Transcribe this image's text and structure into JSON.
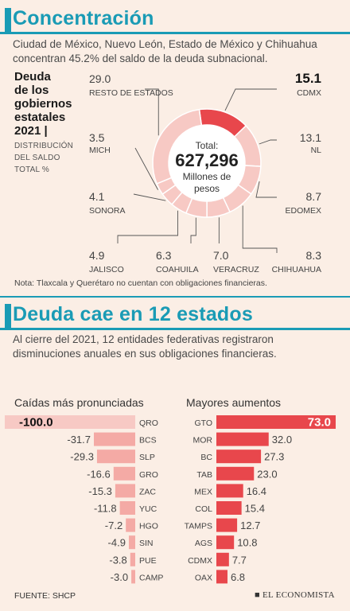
{
  "section1": {
    "title": "Concentración",
    "intro": "Ciudad de México, Nuevo León, Estado de México y Chihuahua concentran 45.2% del saldo de la deuda subnacional.",
    "subtitle_lines": [
      "Deuda",
      "de los",
      "gobiernos",
      "estatales",
      "2021 |"
    ],
    "caption_lines": [
      "DISTRIBUCIÓN",
      "DEL SALDO",
      "TOTAL %"
    ],
    "center": {
      "label": "Total:",
      "value": "627,296",
      "unit_lines": [
        "Millones de",
        "pesos"
      ]
    },
    "note": "Nota: Tlaxcala y Querétaro no cuentan con obligaciones financieras."
  },
  "section2": {
    "title": "Deuda cae en 12 estados",
    "intro": "Al cierre del 2021, 12 entidades federativas registraron disminuciones anuales en sus obligaciones financieras.",
    "left_header": "Caídas más pronunciadas",
    "right_header": "Mayores aumentos"
  },
  "footer": {
    "source": "FUENTE: SHCP",
    "brand": "EL ECONOMISTA"
  },
  "colors": {
    "accent": "#1a9bb5",
    "red": "#e8474c",
    "pink": "#f4aaa5",
    "light_pink": "#f7c9c4",
    "background": "#fbeee5"
  },
  "chart_data": [
    {
      "type": "pie",
      "title": "Deuda de los gobiernos estatales 2021",
      "subtitle": "DISTRIBUCIÓN DEL SALDO TOTAL %",
      "categories": [
        "CDMX",
        "NL",
        "EDOMEX",
        "CHIHUAHUA",
        "VERACRUZ",
        "COAHUILA",
        "JALISCO",
        "SONORA",
        "MICH",
        "RESTO DE ESTADOS"
      ],
      "values": [
        15.1,
        13.1,
        8.7,
        8.3,
        7.0,
        6.3,
        4.9,
        4.1,
        3.5,
        29.0
      ],
      "labels": [
        "15.1",
        "13.1",
        "8.7",
        "8.3",
        "7.0",
        "6.3",
        "4.9",
        "4.1",
        "3.5",
        "29.0"
      ],
      "highlight": "CDMX"
    },
    {
      "type": "bar",
      "title": "Caídas más pronunciadas",
      "orientation": "horizontal",
      "categories": [
        "QRO",
        "BCS",
        "SLP",
        "GRO",
        "ZAC",
        "YUC",
        "HGO",
        "SIN",
        "PUE",
        "CAMP"
      ],
      "values": [
        -100.0,
        -31.7,
        -29.3,
        -16.6,
        -15.3,
        -11.8,
        -7.2,
        -4.9,
        -3.8,
        -3.0
      ],
      "labels": [
        "-100.0",
        "-31.7",
        "-29.3",
        "-16.6",
        "-15.3",
        "-11.8",
        "-7.2",
        "-4.9",
        "-3.8",
        "-3.0"
      ]
    },
    {
      "type": "bar",
      "title": "Mayores aumentos",
      "orientation": "horizontal",
      "categories": [
        "GTO",
        "MOR",
        "BC",
        "TAB",
        "MEX",
        "COL",
        "TAMPS",
        "AGS",
        "CDMX",
        "OAX"
      ],
      "values": [
        73.0,
        32.0,
        27.3,
        23.0,
        16.4,
        15.4,
        12.7,
        10.8,
        7.7,
        6.8
      ],
      "labels": [
        "73.0",
        "32.0",
        "27.3",
        "23.0",
        "16.4",
        "15.4",
        "12.7",
        "10.8",
        "7.7",
        "6.8"
      ]
    }
  ]
}
